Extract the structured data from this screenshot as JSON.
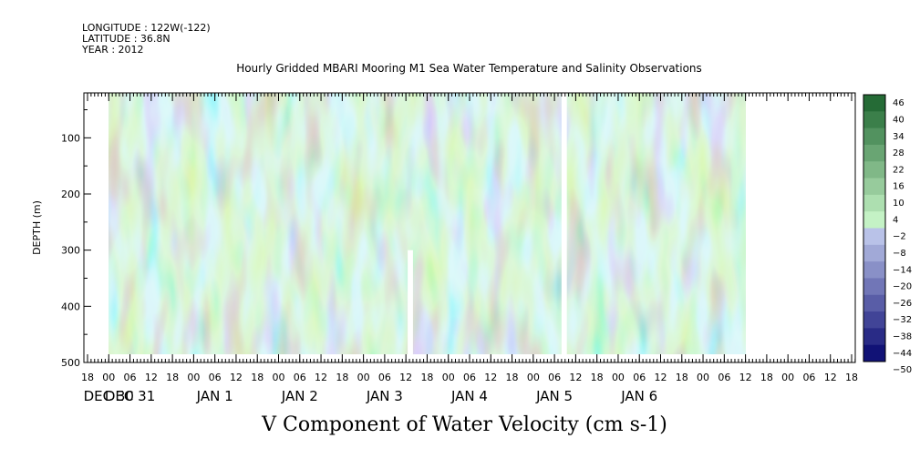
{
  "header": {
    "longitude": "LONGITUDE : 122W(-122)",
    "latitude": "LATITUDE : 36.8N",
    "year": "YEAR : 2012"
  },
  "colors": {
    "negative_strong": "#0a0a8a",
    "negative_light": "#aab4f0",
    "positive_light": "#b4f0b4",
    "positive_strong": "#0a5a1e"
  },
  "chart_data": {
    "type": "heatmap",
    "title": "Hourly Gridded MBARI Mooring M1 Sea Water Temperature and Salinity Observations",
    "xlabel": "V Component of Water Velocity (cm s-1)",
    "ylabel": "DEPTH (m)",
    "ylim": [
      500,
      20
    ],
    "y_inverted": true,
    "y_ticks": [
      100,
      200,
      300,
      400,
      500
    ],
    "x_hour_ticks": [
      "18",
      "00",
      "06",
      "12",
      "18",
      "00",
      "06",
      "12",
      "18",
      "00",
      "06",
      "12",
      "18",
      "00",
      "06",
      "12",
      "18",
      "00",
      "06",
      "12",
      "18",
      "00",
      "06",
      "12",
      "18",
      "00",
      "06",
      "12",
      "18",
      "00",
      "06",
      "12",
      "18",
      "00",
      "06",
      "12",
      "18"
    ],
    "x_date_labels": [
      "DEC 30",
      "DEC 31",
      "JAN  1",
      "JAN  2",
      "JAN  3",
      "JAN  4",
      "JAN  5",
      "JAN  6"
    ],
    "x_date_label_ticks": [
      1,
      2,
      6,
      10,
      14,
      18,
      22,
      26
    ],
    "colorbar_levels": [
      46,
      40,
      34,
      28,
      22,
      16,
      10,
      4,
      -2,
      -8,
      -14,
      -20,
      -26,
      -32,
      -38,
      -44,
      -50
    ],
    "colorbar_range": [
      -50,
      50
    ],
    "data_time_range_hours": [
      0,
      180
    ],
    "data_depth_range_m": [
      20,
      485
    ],
    "missing_time_hours": [
      [
        84.5,
        86
      ],
      [
        128,
        129.5
      ]
    ],
    "grid": false
  }
}
